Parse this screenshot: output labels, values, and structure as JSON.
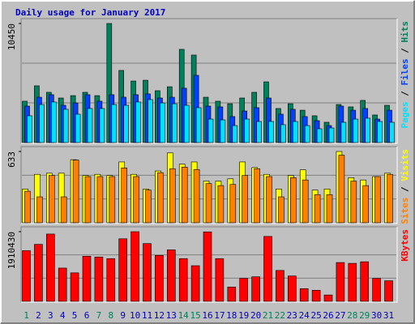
{
  "chart_data": [
    {
      "type": "bar",
      "title": "Daily usage for January 2017",
      "ylim": [
        0,
        10450
      ],
      "yticks": [
        10450
      ],
      "grid_divisions": 3,
      "legend_separator": " / ",
      "series": [
        {
          "name": "Hits",
          "color": "#00805c",
          "values": [
            3630,
            4980,
            4410,
            3910,
            4120,
            4410,
            4120,
            10450,
            6330,
            5400,
            5470,
            4550,
            4900,
            8180,
            7680,
            3980,
            3630,
            3410,
            3910,
            4410,
            5330,
            2990,
            3410,
            2840,
            2350,
            1780,
            3340,
            3130,
            3700,
            2420,
            3270
          ]
        },
        {
          "name": "Files",
          "color": "#0040ff",
          "values": [
            3200,
            3980,
            4200,
            3270,
            3480,
            4200,
            3630,
            4200,
            3980,
            4200,
            4270,
            3910,
            3980,
            4770,
            5900,
            3200,
            3130,
            2280,
            2770,
            3060,
            3910,
            2490,
            2920,
            2280,
            1920,
            1490,
            3200,
            2840,
            2990,
            2060,
            2840
          ]
        },
        {
          "name": "Pages",
          "color": "#00e0ff",
          "values": [
            2350,
            3340,
            3560,
            2920,
            2490,
            2990,
            2990,
            3340,
            3270,
            3560,
            3770,
            3480,
            3410,
            3270,
            3060,
            2060,
            1990,
            1490,
            2060,
            1850,
            1850,
            1570,
            1850,
            1490,
            1210,
            1280,
            1780,
            2060,
            2140,
            1850,
            1780
          ]
        }
      ]
    },
    {
      "type": "bar",
      "ylim": [
        0,
        633
      ],
      "yticks": [
        633
      ],
      "grid_divisions": 3,
      "legend_separator": " / ",
      "series": [
        {
          "name": "Visits",
          "color": "#ffff00",
          "values": [
            300,
            430,
            440,
            440,
            560,
            420,
            430,
            420,
            540,
            430,
            300,
            460,
            620,
            520,
            540,
            370,
            370,
            390,
            540,
            490,
            430,
            300,
            420,
            470,
            290,
            300,
            633,
            400,
            380,
            410,
            440
          ]
        },
        {
          "name": "Sites",
          "color": "#ff8000",
          "values": [
            280,
            230,
            420,
            230,
            557,
            410,
            410,
            410,
            487,
            410,
            290,
            445,
            480,
            494,
            473,
            348,
            330,
            340,
            420,
            480,
            410,
            230,
            400,
            380,
            250,
            250,
            600,
            370,
            330,
            410,
            430
          ]
        }
      ]
    },
    {
      "type": "bar",
      "ylim": [
        0,
        1910430
      ],
      "yticks": [
        1910430
      ],
      "grid_divisions": 3,
      "categories": [
        "1",
        "2",
        "3",
        "4",
        "5",
        "6",
        "7",
        "8",
        "9",
        "10",
        "11",
        "12",
        "13",
        "14",
        "15",
        "16",
        "17",
        "18",
        "19",
        "20",
        "21",
        "22",
        "23",
        "24",
        "25",
        "26",
        "27",
        "28",
        "29",
        "30",
        "31"
      ],
      "category_colors": [
        "#00805c",
        "#0000c0",
        "#0000c0",
        "#0000c0",
        "#0000c0",
        "#0000c0",
        "#00805c",
        "#00805c",
        "#0000c0",
        "#0000c0",
        "#0000c0",
        "#0000c0",
        "#0000c0",
        "#00805c",
        "#00805c",
        "#0000c0",
        "#0000c0",
        "#0000c0",
        "#0000c0",
        "#0000c0",
        "#00805c",
        "#00805c",
        "#0000c0",
        "#0000c0",
        "#0000c0",
        "#0000c0",
        "#0000c0",
        "#00805c",
        "#00805c",
        "#0000c0",
        "#0000c0"
      ],
      "series": [
        {
          "name": "KBytes",
          "color": "#ff0000",
          "values": [
            1389000,
            1563000,
            1845000,
            912000,
            781000,
            1237000,
            1216000,
            1172000,
            1715000,
            1910430,
            1585000,
            1259000,
            1411000,
            1172000,
            977000,
            1905000,
            1172000,
            391000,
            630000,
            673000,
            1780000,
            847000,
            695000,
            347000,
            304000,
            174000,
            1064000,
            1042000,
            1085000,
            630000,
            564000
          ]
        }
      ]
    }
  ]
}
